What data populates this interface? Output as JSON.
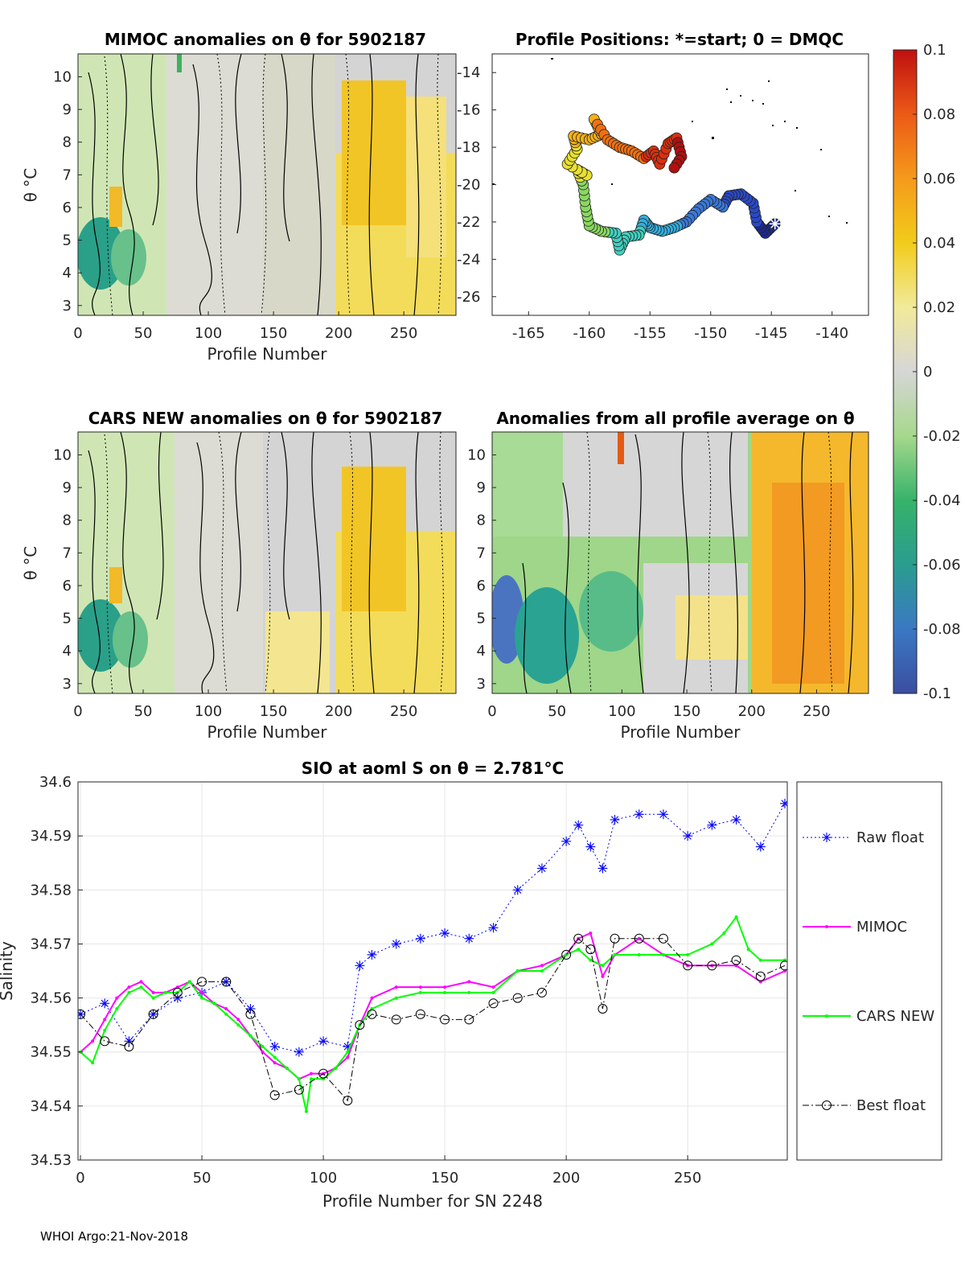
{
  "footer": "WHOI Argo:21-Nov-2018",
  "chart_data": [
    {
      "type": "heatmap",
      "title": "MIMOC anomalies on θ  for 5902187",
      "xlabel": "Profile Number",
      "ylabel": "θ °C",
      "xlim": [
        0,
        290
      ],
      "ylim": [
        2.7,
        10.7
      ],
      "xticks": [
        0,
        50,
        100,
        150,
        200,
        250
      ],
      "yticks": [
        3,
        4,
        5,
        6,
        7,
        8,
        9,
        10
      ]
    },
    {
      "type": "scatter",
      "title": "Profile Positions: *=start; 0 = DMQC",
      "xlim": [
        -168,
        -137
      ],
      "ylim": [
        -27,
        -13
      ],
      "xticks": [
        -165,
        -160,
        -155,
        -150,
        -145,
        -140
      ],
      "yticks": [
        -14,
        -16,
        -18,
        -20,
        -22,
        -24,
        -26
      ],
      "track": [
        [
          -144.7,
          -22.1
        ],
        [
          -145.5,
          -22.6
        ],
        [
          -146.2,
          -22.0
        ],
        [
          -146.5,
          -21.0
        ],
        [
          -147.5,
          -20.5
        ],
        [
          -148.5,
          -20.6
        ],
        [
          -149.0,
          -21.2
        ],
        [
          -150.0,
          -20.8
        ],
        [
          -151.0,
          -21.3
        ],
        [
          -152.0,
          -22.0
        ],
        [
          -153.0,
          -22.3
        ],
        [
          -154.0,
          -22.5
        ],
        [
          -155.0,
          -22.3
        ],
        [
          -155.5,
          -21.9
        ],
        [
          -155.9,
          -22.7
        ],
        [
          -157.0,
          -22.8
        ],
        [
          -157.5,
          -23.5
        ],
        [
          -157.8,
          -22.6
        ],
        [
          -159.0,
          -22.5
        ],
        [
          -160.0,
          -22.2
        ],
        [
          -160.3,
          -21.2
        ],
        [
          -160.5,
          -20.0
        ],
        [
          -161.0,
          -19.2
        ],
        [
          -160.2,
          -19.5
        ],
        [
          -161.8,
          -18.9
        ],
        [
          -161.0,
          -18.1
        ],
        [
          -161.3,
          -17.4
        ],
        [
          -160.0,
          -17.6
        ],
        [
          -159.0,
          -17.3
        ],
        [
          -159.6,
          -16.5
        ],
        [
          -158.5,
          -17.6
        ],
        [
          -157.5,
          -18.0
        ],
        [
          -156.5,
          -18.2
        ],
        [
          -155.5,
          -18.6
        ],
        [
          -154.7,
          -18.2
        ],
        [
          -154.2,
          -18.9
        ],
        [
          -153.5,
          -17.8
        ],
        [
          -152.8,
          -17.5
        ],
        [
          -152.4,
          -18.5
        ],
        [
          -153.2,
          -19.3
        ]
      ],
      "colorbar": {
        "min": -0.1,
        "max": 0.1,
        "ticks": [
          "0.1",
          "0.08",
          "0.06",
          "0.04",
          "0.02",
          "0",
          "-0.02",
          "-0.04",
          "-0.06",
          "-0.08",
          "-0.1"
        ]
      }
    },
    {
      "type": "heatmap",
      "title": "CARS NEW anomalies on θ for 5902187",
      "xlabel": "Profile Number",
      "ylabel": "θ °C",
      "xlim": [
        0,
        290
      ],
      "ylim": [
        2.7,
        10.7
      ],
      "xticks": [
        0,
        50,
        100,
        150,
        200,
        250
      ],
      "yticks": [
        3,
        4,
        5,
        6,
        7,
        8,
        9,
        10
      ]
    },
    {
      "type": "heatmap",
      "title": "Anomalies from all profile average on θ",
      "xlabel": "Profile Number",
      "xlim": [
        0,
        290
      ],
      "ylim": [
        2.7,
        10.7
      ],
      "xticks": [
        0,
        50,
        100,
        150,
        200,
        250
      ],
      "yticks": [
        3,
        4,
        5,
        6,
        7,
        8,
        9,
        10
      ]
    },
    {
      "type": "line",
      "title": "SIO at aoml S on θ = 2.781°C",
      "xlabel": "Profile Number for SN 2248",
      "ylabel": "Salinity",
      "xlim": [
        -1,
        291
      ],
      "ylim": [
        34.53,
        34.6
      ],
      "xticks": [
        0,
        50,
        100,
        150,
        200,
        250
      ],
      "yticks": [
        "34.53",
        "34.54",
        "34.55",
        "34.56",
        "34.57",
        "34.58",
        "34.59",
        "34.6"
      ],
      "legend": [
        "Raw float",
        "MIMOC",
        "CARS NEW",
        "Best float"
      ],
      "series": [
        {
          "name": "Raw float",
          "color": "#0000ff",
          "marker": "asterisk",
          "x": [
            0,
            10,
            20,
            30,
            40,
            50,
            60,
            70,
            80,
            90,
            100,
            110,
            115,
            120,
            130,
            140,
            150,
            160,
            170,
            180,
            190,
            200,
            205,
            210,
            215,
            220,
            230,
            240,
            250,
            260,
            270,
            280,
            290
          ],
          "y": [
            34.557,
            34.559,
            34.552,
            34.557,
            34.56,
            34.561,
            34.563,
            34.558,
            34.551,
            34.55,
            34.552,
            34.551,
            34.566,
            34.568,
            34.57,
            34.571,
            34.572,
            34.571,
            34.573,
            34.58,
            34.584,
            34.589,
            34.592,
            34.588,
            34.584,
            34.593,
            34.594,
            34.594,
            34.59,
            34.592,
            34.593,
            34.588,
            34.596
          ]
        },
        {
          "name": "MIMOC",
          "color": "#ff00ff",
          "marker": "dot",
          "x": [
            0,
            5,
            10,
            15,
            20,
            25,
            30,
            35,
            40,
            45,
            50,
            55,
            60,
            65,
            70,
            75,
            80,
            85,
            90,
            95,
            100,
            105,
            110,
            115,
            120,
            130,
            140,
            150,
            160,
            170,
            180,
            190,
            200,
            205,
            210,
            215,
            220,
            230,
            240,
            250,
            260,
            270,
            280,
            290
          ],
          "y": [
            34.55,
            34.552,
            34.556,
            34.56,
            34.562,
            34.563,
            34.561,
            34.561,
            34.562,
            34.563,
            34.561,
            34.559,
            34.558,
            34.556,
            34.553,
            34.55,
            34.548,
            34.547,
            34.545,
            34.546,
            34.546,
            34.547,
            34.549,
            34.555,
            34.56,
            34.562,
            34.562,
            34.562,
            34.563,
            34.562,
            34.565,
            34.566,
            34.568,
            34.571,
            34.572,
            34.564,
            34.568,
            34.571,
            34.568,
            34.566,
            34.566,
            34.566,
            34.563,
            34.565
          ]
        },
        {
          "name": "CARS NEW",
          "color": "#00ff00",
          "marker": "dot",
          "x": [
            0,
            5,
            10,
            15,
            20,
            25,
            30,
            35,
            40,
            45,
            50,
            55,
            60,
            65,
            70,
            75,
            80,
            85,
            90,
            93,
            95,
            100,
            105,
            110,
            115,
            120,
            130,
            140,
            150,
            160,
            170,
            180,
            190,
            200,
            205,
            210,
            215,
            220,
            230,
            240,
            250,
            260,
            265,
            270,
            275,
            280,
            290
          ],
          "y": [
            34.55,
            34.548,
            34.554,
            34.558,
            34.561,
            34.562,
            34.56,
            34.561,
            34.561,
            34.563,
            34.56,
            34.559,
            34.557,
            34.555,
            34.553,
            34.551,
            34.549,
            34.547,
            34.545,
            34.539,
            34.545,
            34.545,
            34.547,
            34.55,
            34.555,
            34.558,
            34.56,
            34.561,
            34.561,
            34.561,
            34.561,
            34.565,
            34.565,
            34.568,
            34.569,
            34.567,
            34.566,
            34.568,
            34.568,
            34.568,
            34.568,
            34.57,
            34.572,
            34.575,
            34.569,
            34.567,
            34.567
          ]
        },
        {
          "name": "Best float",
          "color": "#000000",
          "marker": "circle",
          "x": [
            0,
            10,
            20,
            30,
            40,
            50,
            60,
            70,
            80,
            90,
            100,
            110,
            115,
            120,
            130,
            140,
            150,
            160,
            170,
            180,
            190,
            200,
            205,
            210,
            215,
            220,
            230,
            240,
            250,
            260,
            270,
            280,
            290
          ],
          "y": [
            34.557,
            34.552,
            34.551,
            34.557,
            34.561,
            34.563,
            34.563,
            34.557,
            34.542,
            34.543,
            34.546,
            34.541,
            34.555,
            34.557,
            34.556,
            34.557,
            34.556,
            34.556,
            34.559,
            34.56,
            34.561,
            34.568,
            34.571,
            34.569,
            34.558,
            34.571,
            34.571,
            34.571,
            34.566,
            34.566,
            34.567,
            34.564,
            34.566
          ]
        }
      ]
    }
  ]
}
